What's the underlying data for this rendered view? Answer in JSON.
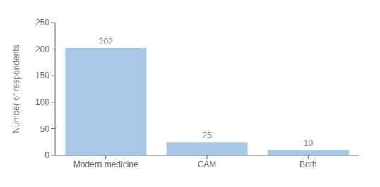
{
  "chart_data": {
    "type": "bar",
    "categories": [
      "Modern medicine",
      "CAM",
      "Both"
    ],
    "values": [
      202,
      25,
      10
    ],
    "ylabel": "Number of respondents",
    "ylim": [
      0,
      250
    ],
    "yticks": [
      0,
      50,
      100,
      150,
      200,
      250
    ],
    "color": "#a8c8e8",
    "data_labels": true,
    "grid": false
  }
}
